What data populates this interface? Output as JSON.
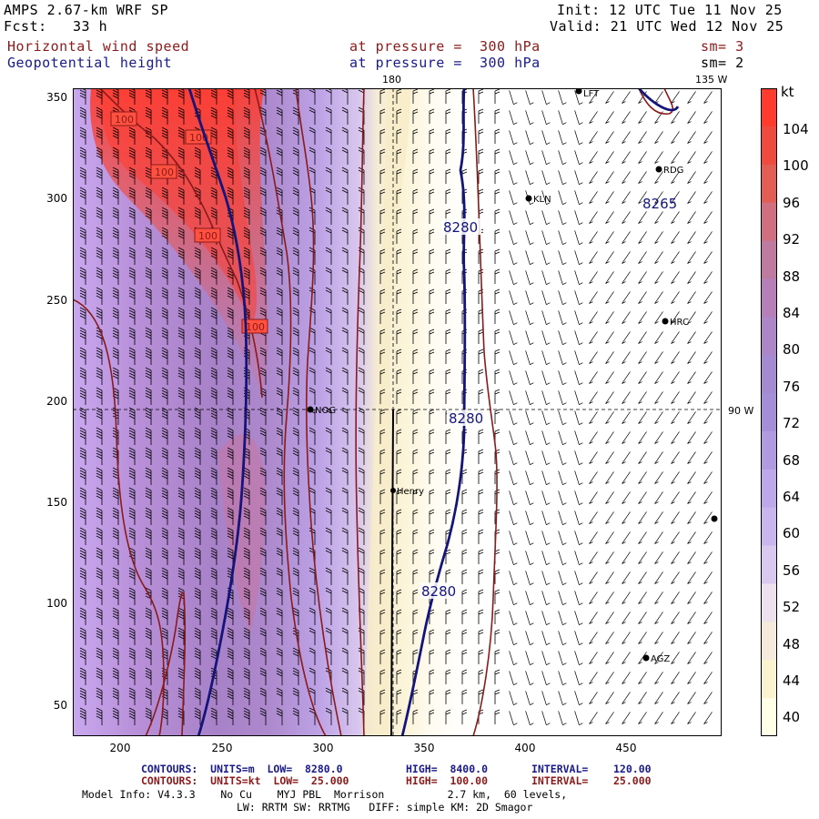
{
  "header": {
    "model": "AMPS 2.67-km WRF SP",
    "fcst_label": "Fcst:",
    "fcst_value": "33 h",
    "init": "Init: 12 UTC Tue 11 Nov 25",
    "valid": "Valid: 21 UTC Wed 12 Nov 25",
    "field1": "Horizontal wind speed",
    "field2": "Geopotential height",
    "pressure1": "at pressure =  300 hPa",
    "pressure2": "at pressure =  300 hPa",
    "sm1": "sm= 3",
    "sm2": "sm= 2"
  },
  "map": {
    "x_ticks": [
      "200",
      "250",
      "300",
      "350",
      "400",
      "450"
    ],
    "y_ticks": [
      "350",
      "300",
      "250",
      "200",
      "150",
      "100",
      "50"
    ],
    "lon_labels": {
      "top_180": "180",
      "top_135w": "135 W",
      "right_90w": "90 W"
    },
    "stations": [
      "LFT",
      "RDG",
      "KLN",
      "HRC",
      "NOG",
      "Henry",
      "AGZ"
    ],
    "height_labels": [
      "8280",
      "8280",
      "8280",
      "8265"
    ],
    "speed_labels": [
      "100",
      "100",
      "100",
      "100",
      "100"
    ]
  },
  "colorbar": {
    "unit": "kt",
    "ticks": [
      "104",
      "100",
      "96",
      "92",
      "88",
      "84",
      "80",
      "76",
      "72",
      "68",
      "64",
      "60",
      "56",
      "52",
      "48",
      "44",
      "40"
    ],
    "colors": [
      "#ff3b2e",
      "#f04a3e",
      "#e25e55",
      "#cf6f80",
      "#bf7aa0",
      "#b77fb8",
      "#ad86c8",
      "#a48ad0",
      "#a58ed8",
      "#b09ae0",
      "#bda9ea",
      "#cab6ef",
      "#d9c9f0",
      "#ece1ec",
      "#f5eadc",
      "#fbf3cf",
      "#ffffe8"
    ]
  },
  "footer": {
    "line1a": "CONTOURS:  UNITS=m  LOW=  8280.0",
    "line1b": "HIGH=  8400.0",
    "line1c": "INTERVAL=    120.00",
    "line2a": "CONTOURS:  UNITS=kt  LOW=  25.000",
    "line2b": "HIGH=  100.00",
    "line2c": "INTERVAL=    25.000",
    "model_info": "Model Info: V4.3.3    No Cu    MYJ PBL  Morrison          2.7 km,  60 levels,",
    "model_info2": "LW: RRTM SW: RRTMG   DIFF: simple KM: 2D Smagor"
  }
}
